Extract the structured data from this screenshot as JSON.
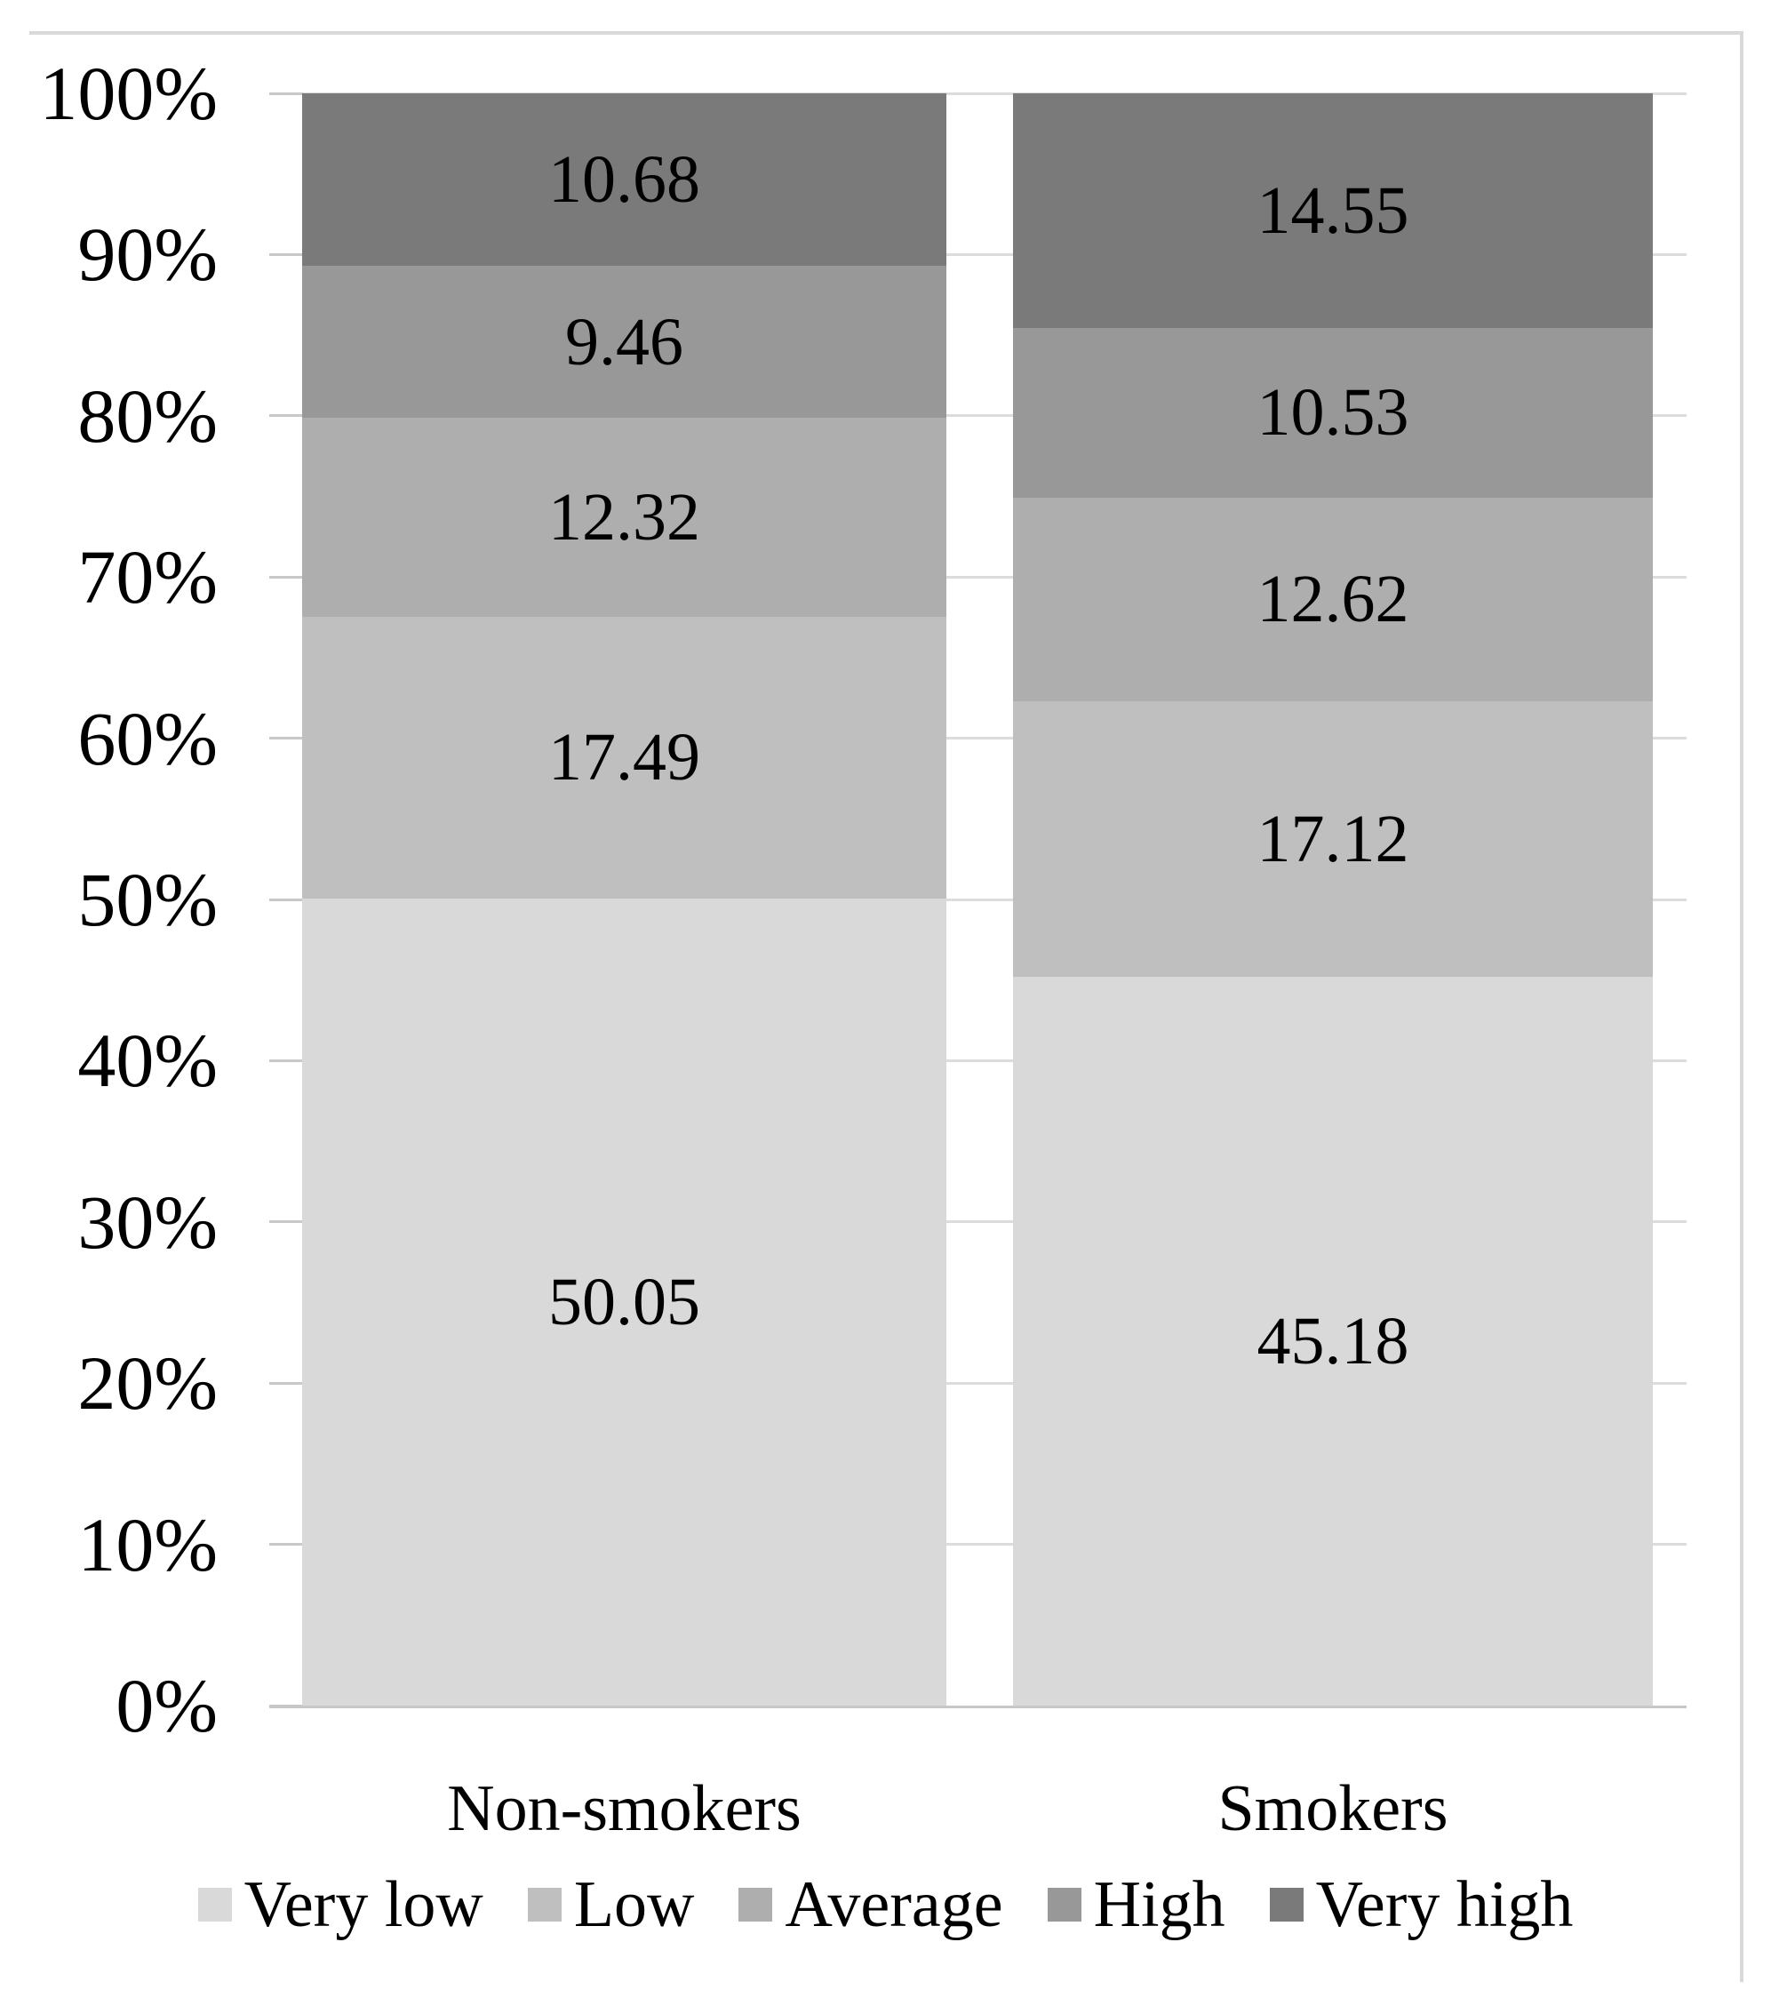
{
  "figure": {
    "background_color": "#ffffff",
    "border_color": "#d9d9d9",
    "gridline_color": "#dcdcdc",
    "axis_line_color": "#c8c8c8",
    "text_color": "#000000"
  },
  "chart_data": {
    "type": "bar",
    "subtype": "stacked-100-percent-column",
    "title": "",
    "xlabel": "",
    "ylabel": "",
    "categories": [
      "Non-smokers",
      "Smokers"
    ],
    "series": [
      {
        "name": "Very low",
        "color": "#d9d9d9",
        "values": [
          50.05,
          45.18
        ],
        "labels": [
          "50.05",
          "45.18"
        ]
      },
      {
        "name": "Low",
        "color": "#bfbfbf",
        "values": [
          17.49,
          17.12
        ],
        "labels": [
          "17.49",
          "17.12"
        ]
      },
      {
        "name": "Average",
        "color": "#aeaeae",
        "values": [
          12.32,
          12.62
        ],
        "labels": [
          "12.32",
          "12.62"
        ]
      },
      {
        "name": "High",
        "color": "#989898",
        "values": [
          9.46,
          10.53
        ],
        "labels": [
          "9.46",
          "10.53"
        ]
      },
      {
        "name": "Very high",
        "color": "#7a7a7a",
        "values": [
          10.68,
          14.55
        ],
        "labels": [
          "10.68",
          "14.55"
        ]
      }
    ],
    "stack_order_top_to_bottom": [
      "Very high",
      "High",
      "Average",
      "Low",
      "Very low"
    ],
    "y_axis": {
      "min": 0,
      "max": 100,
      "tick_step": 10,
      "ticks": [
        "0%",
        "10%",
        "20%",
        "30%",
        "40%",
        "50%",
        "60%",
        "70%",
        "80%",
        "90%",
        "100%"
      ]
    },
    "grid": true,
    "legend_position": "bottom",
    "legend_order": [
      "Very low",
      "Low",
      "Average",
      "High",
      "Very high"
    ]
  }
}
